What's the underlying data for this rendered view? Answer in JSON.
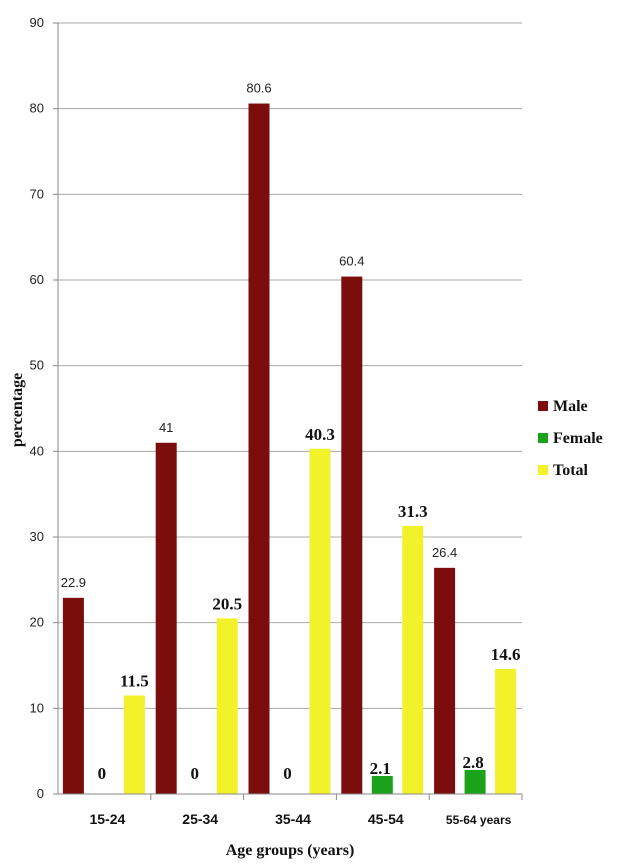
{
  "chart_data": {
    "type": "bar",
    "categories": [
      "15-24",
      "25-34",
      "35-44",
      "45-54",
      "55-64 years"
    ],
    "series": [
      {
        "name": "Male",
        "values": [
          22.9,
          41,
          80.6,
          60.4,
          26.4
        ],
        "labels": [
          "22.9",
          "41",
          "80.6",
          "60.4",
          "26.4"
        ],
        "color": "#7b0d0d"
      },
      {
        "name": "Female",
        "values": [
          0,
          0,
          0,
          2.1,
          2.8
        ],
        "labels": [
          "0",
          "0",
          "0",
          "2.1",
          "2.8"
        ],
        "color": "#1aa31a"
      },
      {
        "name": "Total",
        "values": [
          11.5,
          20.5,
          40.3,
          31.3,
          14.6
        ],
        "labels": [
          "11.5",
          "20.5",
          "40.3",
          "31.3",
          "14.6"
        ],
        "color": "#f2f22a"
      }
    ],
    "title": "",
    "xlabel": "Age groups (years)",
    "ylabel": "percentage",
    "ylim": [
      0,
      90
    ],
    "yticks": [
      "0",
      "10",
      "20",
      "30",
      "40",
      "50",
      "60",
      "70",
      "80",
      "90"
    ],
    "grid": true,
    "legend": "right"
  }
}
